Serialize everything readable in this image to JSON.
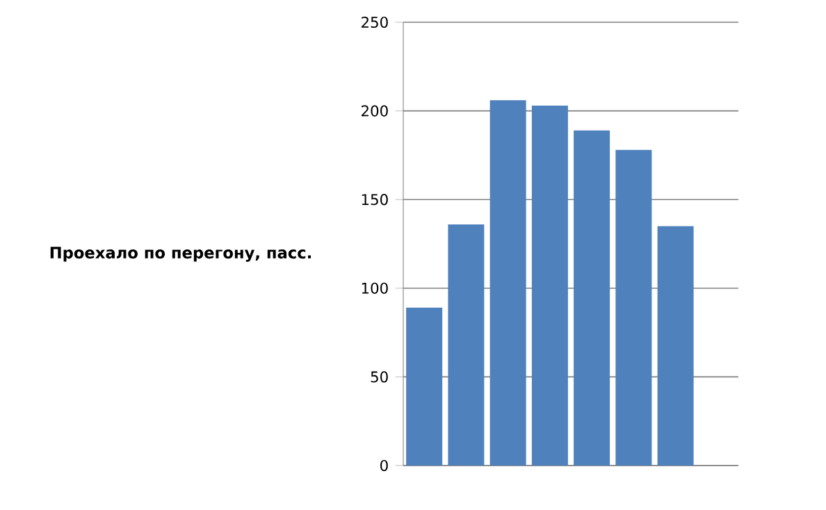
{
  "chart_data": {
    "type": "bar",
    "ylabel": "Проехало по перегону, пасс.",
    "categories": [
      null,
      null,
      null,
      null,
      null,
      null,
      null,
      null
    ],
    "values": [
      89,
      136,
      206,
      203,
      189,
      178,
      135,
      null
    ],
    "color": "#4f81bd",
    "ylim": [
      0,
      250
    ],
    "yticks": [
      0,
      50,
      100,
      150,
      200,
      250
    ],
    "grid": "y"
  }
}
